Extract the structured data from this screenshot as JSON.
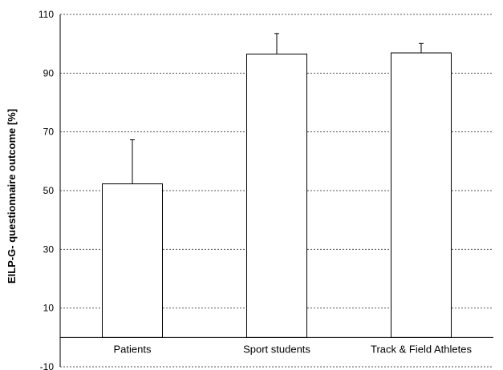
{
  "chart_data": {
    "type": "bar",
    "title": "",
    "xlabel": "",
    "ylabel": "EILP-G- questionnaire outcome [%]",
    "categories": [
      "Patients",
      "Sport students",
      "Track & Field Athletes"
    ],
    "values": [
      52.3,
      96.5,
      96.9
    ],
    "error_plus": [
      15.0,
      7.0,
      3.2
    ],
    "ylim": [
      -10,
      110
    ],
    "yticks": [
      -10,
      10,
      30,
      50,
      70,
      90,
      110
    ],
    "grid": "horizontal dashed",
    "legend": "none",
    "colors": {
      "bar_fill": "#ffffff",
      "bar_stroke": "#000000",
      "grid": "#555555"
    }
  }
}
